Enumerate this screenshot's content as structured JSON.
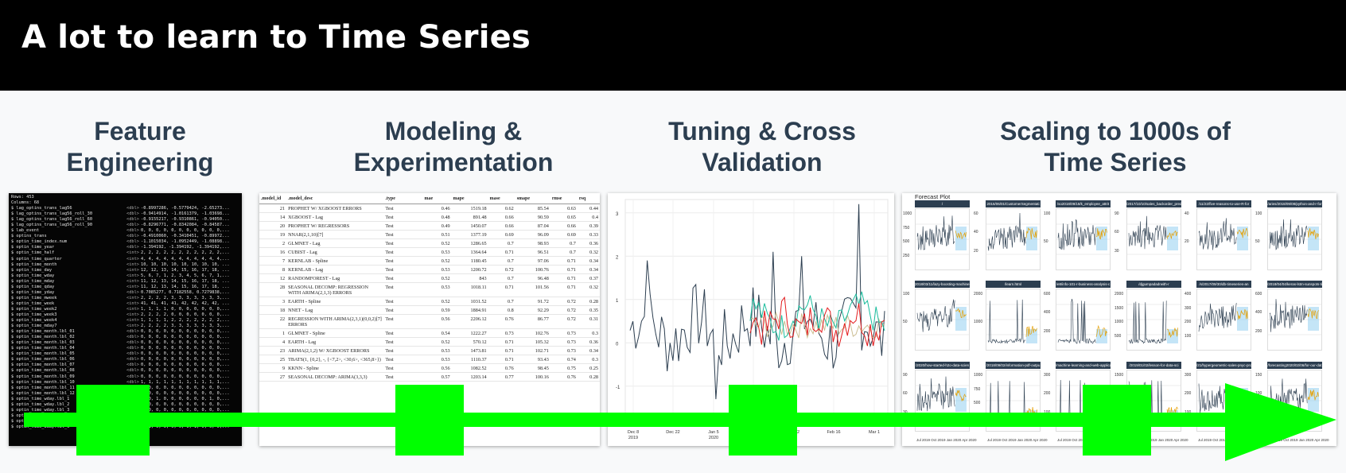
{
  "header": {
    "title": "A lot to learn to Time Series"
  },
  "columns": [
    {
      "title_line1": "Feature",
      "title_line2": "Engineering"
    },
    {
      "title_line1": "Modeling &",
      "title_line2": "Experimentation"
    },
    {
      "title_line1": "Tuning & Cross",
      "title_line2": "Validation"
    },
    {
      "title_line1": "Scaling to 1000s of",
      "title_line2": "Time Series"
    }
  ],
  "terminal": {
    "head1": "Rows: 453",
    "head2": "Columns: 68",
    "rows": [
      [
        "$ lag_optins_trans_lag56",
        "<dbl>",
        "-0.8997286, -0.5779424, -2.65273..."
      ],
      [
        "$ lag_optins_trans_lag56_roll_30",
        "<dbl>",
        "-0.9414914, -1.0161379, -1.03698..."
      ],
      [
        "$ lag_optins_trans_lag56_roll_60",
        "<dbl>",
        "-0.9155217, -0.9310861, -0.94050..."
      ],
      [
        "$ lag_optins_trans_lag56_roll_90",
        "<dbl>",
        "-0.8296771, -0.8342084, -0.84587..."
      ],
      [
        "$ lab_event",
        "<dbl>",
        "0, 0, 0, 0, 0, 0, 0, 0, 0, 0, 0,..."
      ],
      [
        "$ optins_trans",
        "<dbl>",
        "-0.4910060, -0.3410451, -0.89972..."
      ],
      [
        "$ optin_time_index.num",
        "<dbl>",
        "-1.1015034, -1.0952449, -1.08898..."
      ],
      [
        "$ optin_time_year",
        "<dbl>",
        "-1.394192, -1.394192, -1.394192,..."
      ],
      [
        "$ optin_time_half",
        "<int>",
        "2, 2, 2, 2, 2, 2, 2, 2, 2, 2, 2,..."
      ],
      [
        "$ optin_time_quarter",
        "<int>",
        "4, 4, 4, 4, 4, 4, 4, 4, 4, 4, 4,..."
      ],
      [
        "$ optin_time_month",
        "<int>",
        "10, 10, 10, 10, 10, 10, 10, 10, ..."
      ],
      [
        "$ optin_time_day",
        "<int>",
        "12, 12, 13, 14, 15, 16, 17, 18, ..."
      ],
      [
        "$ optin_time_wday",
        "<int>",
        "5, 6, 7, 1, 2, 3, 4, 5, 6, 7, 1,..."
      ],
      [
        "$ optin_time_mday",
        "<int>",
        "11, 12, 13, 14, 15, 16, 17, 18, ..."
      ],
      [
        "$ optin_time_qday",
        "<int>",
        "11, 12, 13, 14, 15, 16, 17, 18, ..."
      ],
      [
        "$ optin_time_yday",
        "<dbl>",
        "0.7085277, 0.7182558, 0.7279838,..."
      ],
      [
        "$ optin_time_mweek",
        "<int>",
        "2, 2, 2, 2, 3, 3, 3, 3, 3, 3, 3,..."
      ],
      [
        "$ optin_time_week",
        "<int>",
        "41, 41, 41, 41, 42, 42, 42, 42, ..."
      ],
      [
        "$ optin_time_week2",
        "<int>",
        "1, 1, 1, 1, 0, 0, 0, 0, 0, 0, 0,..."
      ],
      [
        "$ optin_time_week3",
        "<int>",
        "2, 2, 2, 2, 0, 0, 0, 0, 0, 0, 0,..."
      ],
      [
        "$ optin_time_week4",
        "<int>",
        "1, 1, 1, 1, 2, 2, 2, 2, 2, 2, 2,..."
      ],
      [
        "$ optin_time_mday7",
        "<int>",
        "2, 2, 2, 2, 3, 3, 3, 3, 3, 3, 3,..."
      ],
      [
        "$ optin_time_month.lbl_01",
        "<dbl>",
        "0, 0, 0, 0, 0, 0, 0, 0, 0, 0, 0,..."
      ],
      [
        "$ optin_time_month.lbl_02",
        "<dbl>",
        "0, 0, 0, 0, 0, 0, 0, 0, 0, 0, 0,..."
      ],
      [
        "$ optin_time_month.lbl_03",
        "<dbl>",
        "0, 0, 0, 0, 0, 0, 0, 0, 0, 0, 0,..."
      ],
      [
        "$ optin_time_month.lbl_04",
        "<dbl>",
        "0, 0, 0, 0, 0, 0, 0, 0, 0, 0, 0,..."
      ],
      [
        "$ optin_time_month.lbl_05",
        "<dbl>",
        "0, 0, 0, 0, 0, 0, 0, 0, 0, 0, 0,..."
      ],
      [
        "$ optin_time_month.lbl_06",
        "<dbl>",
        "0, 0, 0, 0, 0, 0, 0, 0, 0, 0, 0,..."
      ],
      [
        "$ optin_time_month.lbl_07",
        "<dbl>",
        "0, 0, 0, 0, 0, 0, 0, 0, 0, 0, 0,..."
      ],
      [
        "$ optin_time_month.lbl_08",
        "<dbl>",
        "0, 0, 0, 0, 0, 0, 0, 0, 0, 0, 0,..."
      ],
      [
        "$ optin_time_month.lbl_09",
        "<dbl>",
        "0, 0, 0, 0, 0, 0, 0, 0, 0, 0, 0,..."
      ],
      [
        "$ optin_time_month.lbl_10",
        "<dbl>",
        "1, 1, 1, 1, 1, 1, 1, 1, 1, 1, 1,..."
      ],
      [
        "$ optin_time_month.lbl_11",
        "<dbl>",
        "0, 0, 0, 0, 0, 0, 0, 0, 0, 0, 0,..."
      ],
      [
        "$ optin_time_month.lbl_12",
        "<dbl>",
        "0, 0, 0, 0, 0, 0, 0, 0, 0, 0, 0,..."
      ],
      [
        "$ optin_time_wday.lbl_1",
        "<dbl>",
        "0, 0, 1, 0, 0, 0, 0, 0, 0, 1, 0,..."
      ],
      [
        "$ optin_time_wday.lbl_2",
        "<dbl>",
        "0, 0, 0, 0, 0, 0, 0, 0, 0, 0, 0,..."
      ],
      [
        "$ optin_time_wday.lbl_3",
        "<dbl>",
        "0, 0, 0, 0, 0, 0, 0, 0, 0, 0, 0,..."
      ],
      [
        "$ optin_time_wday.lbl_4",
        "<dbl>",
        "0, 0, 0, 0, 0, 0, 0, 0, 0, 0, 0,..."
      ],
      [
        "$ optin_time_wday.lbl_5",
        "<dbl>",
        "1, 0, 0, 0, 0, 0, 1, 0, 0, 0, 0,..."
      ],
      [
        "$ optin_time_wday.lbl_6",
        "<dbl>",
        "0, 1, 0, 0, 0, 0, 0, 1, 0, 0, 0,..."
      ]
    ]
  },
  "model_table": {
    "headers": [
      ".model_id",
      ".model_desc",
      ".type",
      "mae",
      "mape",
      "mase",
      "smape",
      "rmse",
      "rsq"
    ],
    "rows": [
      [
        "21",
        "PROPHET W/ XGBOOST ERRORS",
        "Test",
        "0.46",
        "1519.18",
        "0.62",
        "85.54",
        "0.63",
        "0.44"
      ],
      [
        "14",
        "XGBOOST - Lag",
        "Test",
        "0.48",
        "891.48",
        "0.66",
        "90.59",
        "0.65",
        "0.4"
      ],
      [
        "20",
        "PROPHET W/ REGRESSORS",
        "Test",
        "0.49",
        "1450.07",
        "0.66",
        "87.04",
        "0.66",
        "0.39"
      ],
      [
        "19",
        "NNAR(2,1,10)[7]",
        "Test",
        "0.51",
        "1377.19",
        "0.69",
        "96.09",
        "0.69",
        "0.33"
      ],
      [
        "2",
        "GLMNET - Lag",
        "Test",
        "0.52",
        "1286.65",
        "0.7",
        "98.93",
        "0.7",
        "0.36"
      ],
      [
        "16",
        "CUBIST - Lag",
        "Test",
        "0.53",
        "1364.64",
        "0.71",
        "96.51",
        "0.7",
        "0.32"
      ],
      [
        "7",
        "KERNLAB - Spline",
        "Test",
        "0.52",
        "1180.45",
        "0.7",
        "97.06",
        "0.71",
        "0.34"
      ],
      [
        "8",
        "KERNLAB - Lag",
        "Test",
        "0.53",
        "1200.72",
        "0.72",
        "100.76",
        "0.71",
        "0.34"
      ],
      [
        "12",
        "RANDOMFOREST - Lag",
        "Test",
        "0.52",
        "843",
        "0.7",
        "96.48",
        "0.71",
        "0.37"
      ],
      [
        "28",
        "SEASONAL DECOMP: REGRESSION WITH ARIMA(2,1,3) ERRORS",
        "Test",
        "0.53",
        "1018.11",
        "0.71",
        "101.56",
        "0.71",
        "0.32"
      ],
      [
        "3",
        "EARTH - Spline",
        "Test",
        "0.52",
        "1031.52",
        "0.7",
        "91.72",
        "0.72",
        "0.28"
      ],
      [
        "18",
        "NNET - Lag",
        "Test",
        "0.59",
        "1884.91",
        "0.8",
        "92.29",
        "0.72",
        "0.35"
      ],
      [
        "22",
        "REGRESSION WITH ARIMA(2,3,1)(0,0,2)[7] ERRORS",
        "Test",
        "0.56",
        "2206.12",
        "0.76",
        "86.77",
        "0.72",
        "0.31"
      ],
      [
        "1",
        "GLMNET - Spline",
        "Test",
        "0.54",
        "1222.27",
        "0.73",
        "102.76",
        "0.73",
        "0.3"
      ],
      [
        "4",
        "EARTH - Lag",
        "Test",
        "0.52",
        "570.12",
        "0.71",
        "105.32",
        "0.73",
        "0.36"
      ],
      [
        "23",
        "ARIMA(2,1,2) W/ XGBOOST ERRORS",
        "Test",
        "0.53",
        "1473.81",
        "0.71",
        "102.71",
        "0.73",
        "0.34"
      ],
      [
        "25",
        "TBATS(1, {0,2}, -, {<7,2>, <30,6>, <365,8>})",
        "Test",
        "0.53",
        "1110.37",
        "0.71",
        "93.43",
        "0.74",
        "0.3"
      ],
      [
        "9",
        "KKNN - Spline",
        "Test",
        "0.56",
        "1082.52",
        "0.76",
        "98.45",
        "0.75",
        "0.25"
      ],
      [
        "27",
        "SEASONAL DECOMP: ARIMA(3,3,3)",
        "Test",
        "0.57",
        "1203.14",
        "0.77",
        "100.16",
        "0.76",
        "0.28"
      ]
    ]
  },
  "tuning_chart": {
    "y_ticks": [
      "3",
      "2",
      "1",
      "0",
      "-1"
    ],
    "x_ticks": [
      [
        "Dec 8",
        "2019"
      ],
      [
        "Dec 22",
        ""
      ],
      [
        "Jan 5",
        "2020"
      ],
      [
        "Jan 19",
        ""
      ],
      [
        "Feb 2",
        ""
      ],
      [
        "Feb 16",
        ""
      ],
      [
        "Mar 1",
        ""
      ]
    ],
    "colors": {
      "actual": "#2c3e50",
      "model1": "#e31a1c",
      "model2": "#18bc9c",
      "model3": "#ccbe93"
    }
  },
  "forecast_grid": {
    "title": "Forecast Plot",
    "row_labels": [
      [
        "/",
        "2016/06/01/CustomerSegmentati",
        "/so2018/09/18/k_employee_attrit",
        "/2017/10/10/sales_backorder_pred",
        "/11/22/five-reasons-to-use-R-for",
        "/aries/2018/09/08/python-and-r-for"
      ],
      [
        "2018/03/11/lazy-boosting-machine-le",
        "/learn.html",
        "/e8/info-101-r-business-analysis-c",
        "/djgumpadadrwith-r",
        "/s/2017/09/30/db-timeseries-an",
        "/2018/04/04/keras-lstm-sunspots-tim"
      ],
      [
        "/2020/how-started-h2o-data-scien",
        "/2018/09/02/information-pdf-outpu",
        "/machine-learning-and-web-applications",
        "/2019/01/02/lesson-for-data-sci",
        "/21/hypergeometric-sales-pnyc-pro",
        "/forecasting2020/02/06/for-our-dat"
      ]
    ],
    "y_ticks": [
      [
        [
          "1000",
          "750",
          "500",
          "250"
        ],
        [
          "60",
          "40",
          "20"
        ],
        [
          "100",
          "50"
        ],
        [
          "90",
          "60",
          "30"
        ],
        [
          "40",
          "20"
        ],
        [
          "100",
          "50"
        ]
      ],
      [
        [
          "100",
          "50"
        ],
        [
          "2000",
          "1000"
        ],
        [
          "600",
          "400",
          "200"
        ],
        [
          "2000",
          "1500",
          "1000",
          "500"
        ],
        [
          "400",
          "300",
          "200",
          "100"
        ],
        [
          "600",
          "400",
          "200"
        ]
      ],
      [
        [
          "90",
          "60",
          "30"
        ],
        [
          "1000",
          "750",
          "500",
          "250"
        ],
        [
          "300",
          "200",
          "100"
        ],
        [
          "1500",
          "1000",
          "500"
        ],
        [
          "300",
          "200",
          "100"
        ],
        [
          "150",
          "100",
          "50"
        ]
      ]
    ],
    "x_label": "Jul 2019 Oct 2019 Jan 2020 Apr 2020",
    "colors": {
      "actual": "#2c3e50",
      "forecast_a": "#e69f00",
      "forecast_b": "#56b4e9"
    }
  },
  "overlay": {
    "arrow_color": "#00ff00"
  }
}
